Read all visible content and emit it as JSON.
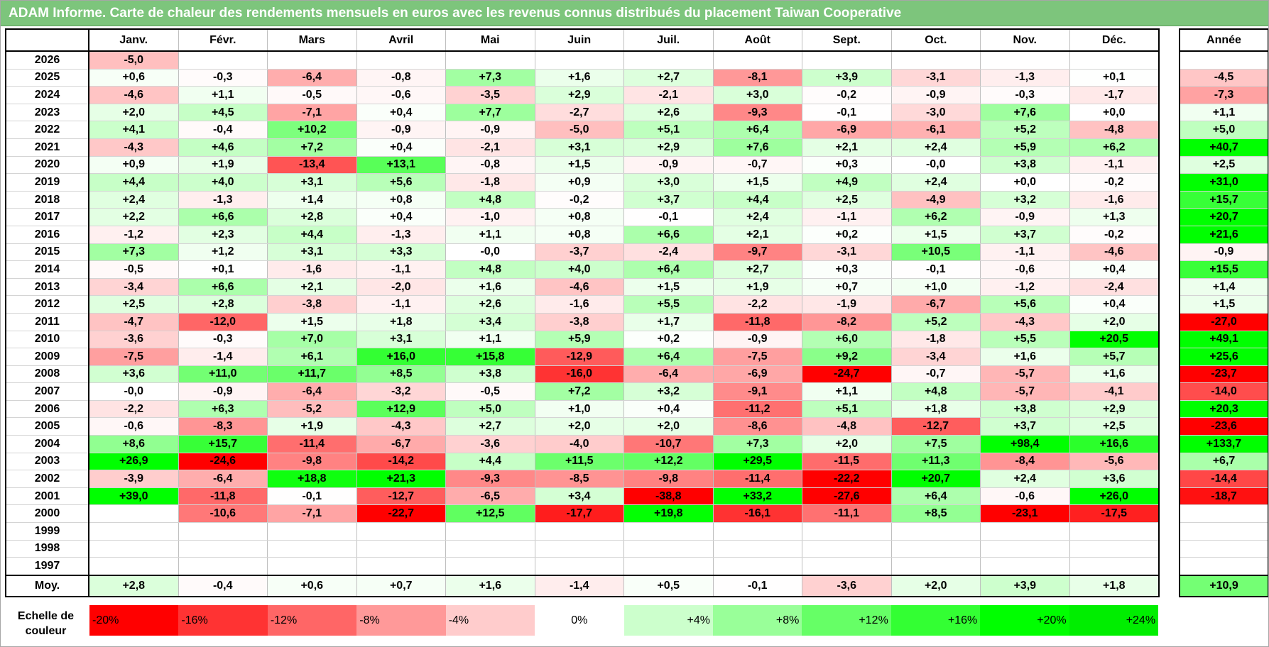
{
  "title": "ADAM Informe. Carte de chaleur des rendements mensuels en euros avec les revenus connus distribués du placement Taiwan Cooperative",
  "chart_data": {
    "type": "heatmap",
    "title": "ADAM Informe. Carte de chaleur des rendements mensuels en euros avec les revenus connus distribués du placement Taiwan Cooperative",
    "months": [
      "Janv.",
      "Févr.",
      "Mars",
      "Avril",
      "Mai",
      "Juin",
      "Juil.",
      "Août",
      "Sept.",
      "Oct.",
      "Nov.",
      "Déc."
    ],
    "annual_header": "Année",
    "rows": [
      {
        "year": "2026",
        "values": [
          "-5,0",
          "",
          "",
          "",
          "",
          "",
          "",
          "",
          "",
          "",
          "",
          ""
        ],
        "annual": ""
      },
      {
        "year": "2025",
        "values": [
          "+0,6",
          "-0,3",
          "-6,4",
          "-0,8",
          "+7,3",
          "+1,6",
          "+2,7",
          "-8,1",
          "+3,9",
          "-3,1",
          "-1,3",
          "+0,1"
        ],
        "annual": "-4,5"
      },
      {
        "year": "2024",
        "values": [
          "-4,6",
          "+1,1",
          "-0,5",
          "-0,6",
          "-3,5",
          "+2,9",
          "-2,1",
          "+3,0",
          "-0,2",
          "-0,9",
          "-0,3",
          "-1,7"
        ],
        "annual": "-7,3"
      },
      {
        "year": "2023",
        "values": [
          "+2,0",
          "+4,5",
          "-7,1",
          "+0,4",
          "+7,7",
          "-2,7",
          "+2,6",
          "-9,3",
          "-0,1",
          "-3,0",
          "+7,6",
          "+0,0"
        ],
        "annual": "+1,1"
      },
      {
        "year": "2022",
        "values": [
          "+4,1",
          "-0,4",
          "+10,2",
          "-0,9",
          "-0,9",
          "-5,0",
          "+5,1",
          "+6,4",
          "-6,9",
          "-6,1",
          "+5,2",
          "-4,8"
        ],
        "annual": "+5,0"
      },
      {
        "year": "2021",
        "values": [
          "-4,3",
          "+4,6",
          "+7,2",
          "+0,4",
          "-2,1",
          "+3,1",
          "+2,9",
          "+7,6",
          "+2,1",
          "+2,4",
          "+5,9",
          "+6,2"
        ],
        "annual": "+40,7"
      },
      {
        "year": "2020",
        "values": [
          "+0,9",
          "+1,9",
          "-13,4",
          "+13,1",
          "-0,8",
          "+1,5",
          "-0,9",
          "-0,7",
          "+0,3",
          "-0,0",
          "+3,8",
          "-1,1"
        ],
        "annual": "+2,5"
      },
      {
        "year": "2019",
        "values": [
          "+4,4",
          "+4,0",
          "+3,1",
          "+5,6",
          "-1,8",
          "+0,9",
          "+3,0",
          "+1,5",
          "+4,9",
          "+2,4",
          "+0,0",
          "-0,2"
        ],
        "annual": "+31,0"
      },
      {
        "year": "2018",
        "values": [
          "+2,4",
          "-1,3",
          "+1,4",
          "+0,8",
          "+4,8",
          "-0,2",
          "+3,7",
          "+4,4",
          "+2,5",
          "-4,9",
          "+3,2",
          "-1,6"
        ],
        "annual": "+15,7"
      },
      {
        "year": "2017",
        "values": [
          "+2,2",
          "+6,6",
          "+2,8",
          "+0,4",
          "-1,0",
          "+0,8",
          "-0,1",
          "+2,4",
          "-1,1",
          "+6,2",
          "-0,9",
          "+1,3"
        ],
        "annual": "+20,7"
      },
      {
        "year": "2016",
        "values": [
          "-1,2",
          "+2,3",
          "+4,4",
          "-1,3",
          "+1,1",
          "+0,8",
          "+6,6",
          "+2,1",
          "+0,2",
          "+1,5",
          "+3,7",
          "-0,2"
        ],
        "annual": "+21,6"
      },
      {
        "year": "2015",
        "values": [
          "+7,3",
          "+1,2",
          "+3,1",
          "+3,3",
          "-0,0",
          "-3,7",
          "-2,4",
          "-9,7",
          "-3,1",
          "+10,5",
          "-1,1",
          "-4,6"
        ],
        "annual": "-0,9"
      },
      {
        "year": "2014",
        "values": [
          "-0,5",
          "+0,1",
          "-1,6",
          "-1,1",
          "+4,8",
          "+4,0",
          "+6,4",
          "+2,7",
          "+0,3",
          "-0,1",
          "-0,6",
          "+0,4"
        ],
        "annual": "+15,5"
      },
      {
        "year": "2013",
        "values": [
          "-3,4",
          "+6,6",
          "+2,1",
          "-2,0",
          "+1,6",
          "-4,6",
          "+1,5",
          "+1,9",
          "+0,7",
          "+1,0",
          "-1,2",
          "-2,4"
        ],
        "annual": "+1,4"
      },
      {
        "year": "2012",
        "values": [
          "+2,5",
          "+2,8",
          "-3,8",
          "-1,1",
          "+2,6",
          "-1,6",
          "+5,5",
          "-2,2",
          "-1,9",
          "-6,7",
          "+5,6",
          "+0,4"
        ],
        "annual": "+1,5"
      },
      {
        "year": "2011",
        "values": [
          "-4,7",
          "-12,0",
          "+1,5",
          "+1,8",
          "+3,4",
          "-3,8",
          "+1,7",
          "-11,8",
          "-8,2",
          "+5,2",
          "-4,3",
          "+2,0"
        ],
        "annual": "-27,0"
      },
      {
        "year": "2010",
        "values": [
          "-3,6",
          "-0,3",
          "+7,0",
          "+3,1",
          "+1,1",
          "+5,9",
          "+0,2",
          "-0,9",
          "+6,0",
          "-1,8",
          "+5,5",
          "+20,5"
        ],
        "annual": "+49,1"
      },
      {
        "year": "2009",
        "values": [
          "-7,5",
          "-1,4",
          "+6,1",
          "+16,0",
          "+15,8",
          "-12,9",
          "+6,4",
          "-7,5",
          "+9,2",
          "-3,4",
          "+1,6",
          "+5,7"
        ],
        "annual": "+25,6"
      },
      {
        "year": "2008",
        "values": [
          "+3,6",
          "+11,0",
          "+11,7",
          "+8,5",
          "+3,8",
          "-16,0",
          "-6,4",
          "-6,9",
          "-24,7",
          "-0,7",
          "-5,7",
          "+1,6"
        ],
        "annual": "-23,7"
      },
      {
        "year": "2007",
        "values": [
          "-0,0",
          "-0,9",
          "-6,4",
          "-3,2",
          "-0,5",
          "+7,2",
          "+3,2",
          "-9,1",
          "+1,1",
          "+4,8",
          "-5,7",
          "-4,1"
        ],
        "annual": "-14,0"
      },
      {
        "year": "2006",
        "values": [
          "-2,2",
          "+6,3",
          "-5,2",
          "+12,9",
          "+5,0",
          "+1,0",
          "+0,4",
          "-11,2",
          "+5,1",
          "+1,8",
          "+3,8",
          "+2,9"
        ],
        "annual": "+20,3"
      },
      {
        "year": "2005",
        "values": [
          "-0,6",
          "-8,3",
          "+1,9",
          "-4,3",
          "+2,7",
          "+2,0",
          "+2,0",
          "-8,6",
          "-4,8",
          "-12,7",
          "+3,7",
          "+2,5"
        ],
        "annual": "-23,6"
      },
      {
        "year": "2004",
        "values": [
          "+8,6",
          "+15,7",
          "-11,4",
          "-6,7",
          "-3,6",
          "-4,0",
          "-10,7",
          "+7,3",
          "+2,0",
          "+7,5",
          "+98,4",
          "+16,6"
        ],
        "annual": "+133,7"
      },
      {
        "year": "2003",
        "values": [
          "+26,9",
          "-24,6",
          "-9,8",
          "-14,2",
          "+4,4",
          "+11,5",
          "+12,2",
          "+29,5",
          "-11,5",
          "+11,3",
          "-8,4",
          "-5,6"
        ],
        "annual": "+6,7"
      },
      {
        "year": "2002",
        "values": [
          "-3,9",
          "-6,4",
          "+18,8",
          "+21,3",
          "-9,3",
          "-8,5",
          "-9,8",
          "-11,4",
          "-22,2",
          "+20,7",
          "+2,4",
          "+3,6"
        ],
        "annual": "-14,4"
      },
      {
        "year": "2001",
        "values": [
          "+39,0",
          "-11,8",
          "-0,1",
          "-12,7",
          "-6,5",
          "+3,4",
          "-38,8",
          "+33,2",
          "-27,6",
          "+6,4",
          "-0,6",
          "+26,0"
        ],
        "annual": "-18,7"
      },
      {
        "year": "2000",
        "values": [
          "",
          "-10,6",
          "-7,1",
          "-22,7",
          "+12,5",
          "-17,7",
          "+19,8",
          "-16,1",
          "-11,1",
          "+8,5",
          "-23,1",
          "-17,5"
        ],
        "annual": ""
      },
      {
        "year": "1999",
        "values": [
          "",
          "",
          "",
          "",
          "",
          "",
          "",
          "",
          "",
          "",
          "",
          ""
        ],
        "annual": ""
      },
      {
        "year": "1998",
        "values": [
          "",
          "",
          "",
          "",
          "",
          "",
          "",
          "",
          "",
          "",
          "",
          ""
        ],
        "annual": ""
      },
      {
        "year": "1997",
        "values": [
          "",
          "",
          "",
          "",
          "",
          "",
          "",
          "",
          "",
          "",
          "",
          ""
        ],
        "annual": ""
      }
    ],
    "average_label": "Moy.",
    "averages": [
      "+2,8",
      "-0,4",
      "+0,6",
      "+0,7",
      "+1,6",
      "-1,4",
      "+0,5",
      "-0,1",
      "-3,6",
      "+2,0",
      "+3,9",
      "+1,8"
    ],
    "annual_average": "+10,9",
    "scale_label": "Echelle de couleur",
    "scale": [
      {
        "label": "-20%",
        "value": -20,
        "color": "#ff0000"
      },
      {
        "label": "-16%",
        "value": -16,
        "color": "#ff3333"
      },
      {
        "label": "-12%",
        "value": -12,
        "color": "#ff6666"
      },
      {
        "label": "-8%",
        "value": -8,
        "color": "#ff9999"
      },
      {
        "label": "-4%",
        "value": -4,
        "color": "#ffcccc"
      },
      {
        "label": "0%",
        "value": 0,
        "color": "#ffffff"
      },
      {
        "label": "+4%",
        "value": 4,
        "color": "#ccffcc"
      },
      {
        "label": "+8%",
        "value": 8,
        "color": "#99ff99"
      },
      {
        "label": "+12%",
        "value": 12,
        "color": "#66ff66"
      },
      {
        "label": "+16%",
        "value": 16,
        "color": "#33ff33"
      },
      {
        "label": "+20%",
        "value": 20,
        "color": "#00ff00"
      },
      {
        "label": "+24%",
        "value": 24,
        "color": "#00ee00"
      }
    ],
    "colors": {
      "title_bar": "#7dc57c",
      "negative_max": "#ff0000",
      "positive_max": "#00ff00",
      "neutral": "#ffffff"
    }
  }
}
